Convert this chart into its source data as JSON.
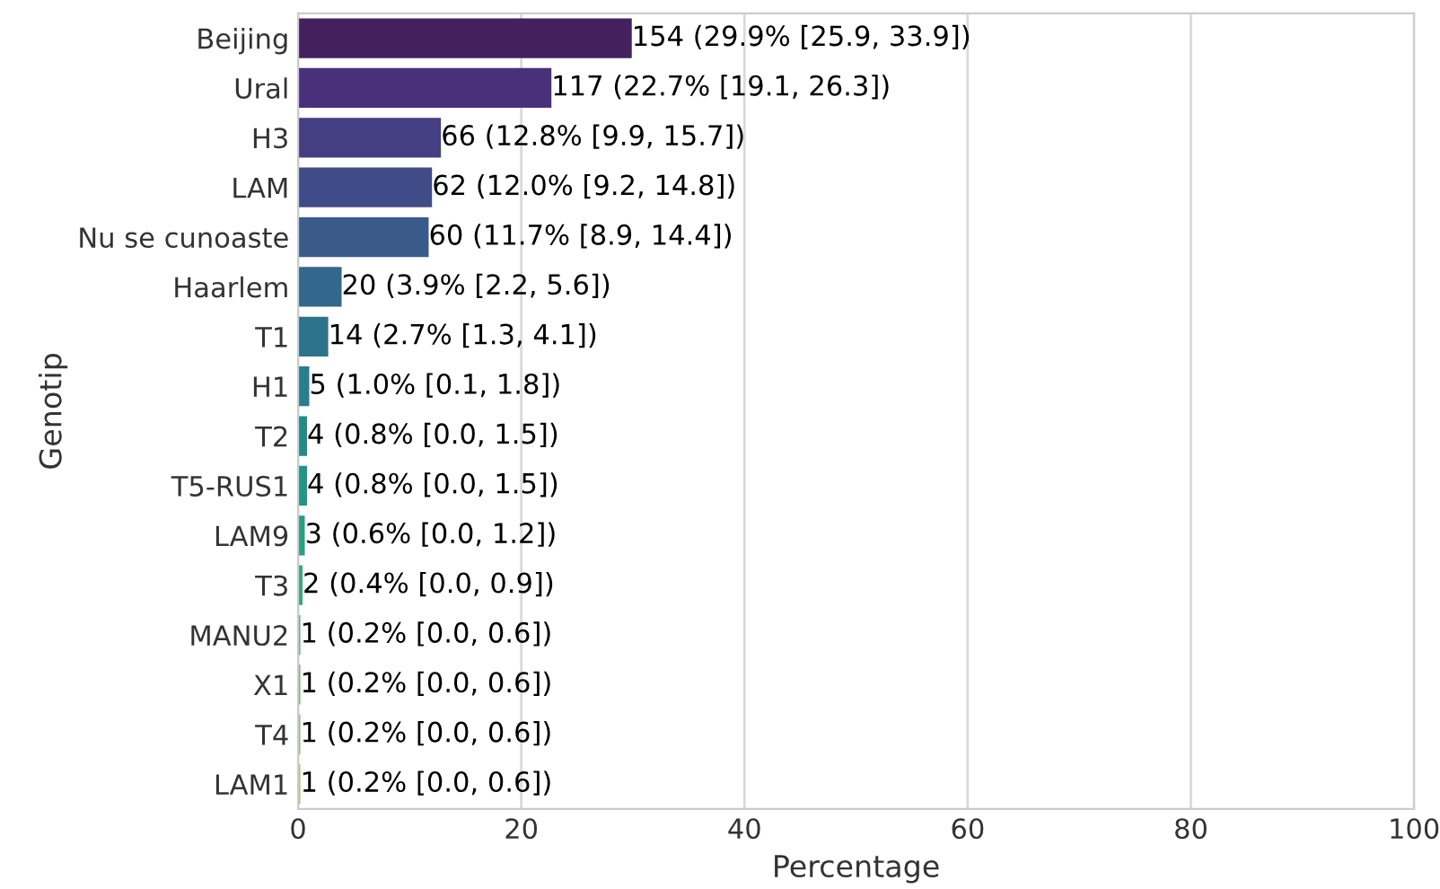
{
  "chart_data": {
    "type": "bar",
    "orientation": "horizontal",
    "xlabel": "Percentage",
    "ylabel": "Genotip",
    "categories": [
      "Beijing",
      "Ural",
      "H3",
      "LAM",
      "Nu se cunoaste",
      "Haarlem",
      "T1",
      "H1",
      "T2",
      "T5-RUS1",
      "LAM9",
      "T3",
      "MANU2",
      "X1",
      "T4",
      "LAM1"
    ],
    "values": [
      29.9,
      22.7,
      12.8,
      12.0,
      11.7,
      3.9,
      2.7,
      1.0,
      0.8,
      0.8,
      0.6,
      0.4,
      0.2,
      0.2,
      0.2,
      0.2
    ],
    "colors": [
      "#45205f",
      "#48307a",
      "#443f83",
      "#3f4c88",
      "#395a8a",
      "#33678b",
      "#2d738b",
      "#287f8b",
      "#248a89",
      "#229586",
      "#27a081",
      "#34ab79",
      "#4ab56e",
      "#64bf61",
      "#84c74f",
      "#a6cf3c"
    ],
    "value_labels": [
      "154 (29.9% [25.9, 33.9])",
      "117 (22.7% [19.1, 26.3])",
      "66 (12.8% [9.9, 15.7])",
      "62 (12.0% [9.2, 14.8])",
      "60 (11.7% [8.9, 14.4])",
      "20 (3.9% [2.2, 5.6])",
      "14 (2.7% [1.3, 4.1])",
      "5 (1.0% [0.1, 1.8])",
      "4 (0.8% [0.0, 1.5])",
      "4 (0.8% [0.0, 1.5])",
      "3 (0.6% [0.0, 1.2])",
      "2 (0.4% [0.0, 0.9])",
      "1 (0.2% [0.0, 0.6])",
      "1 (0.2% [0.0, 0.6])",
      "1 (0.2% [0.0, 0.6])",
      "1 (0.2% [0.0, 0.6])"
    ],
    "xlim": [
      0,
      100
    ],
    "xticks": [
      0,
      20,
      40,
      60,
      80,
      100
    ],
    "grid": "x"
  }
}
